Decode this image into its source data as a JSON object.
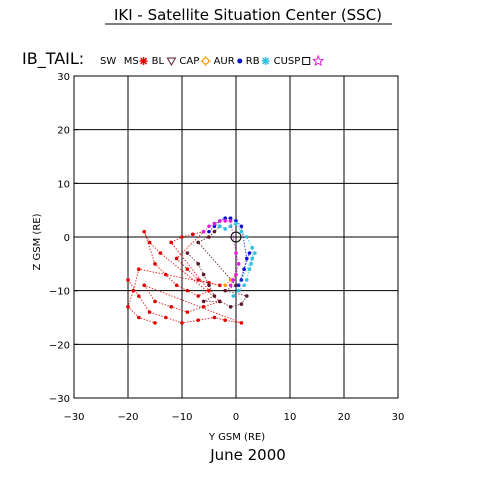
{
  "title": "IKI - Satellite Situation Center (SSC)",
  "satellite": "IB_TAIL:",
  "date_label": "June    2000",
  "legend": [
    {
      "label": "SW",
      "symbol": "none",
      "color": "#000000"
    },
    {
      "label": "MS",
      "symbol": "asterisk",
      "color": "#e00000"
    },
    {
      "label": "BL",
      "symbol": "triangle-down",
      "color": "#5a1a2a"
    },
    {
      "label": "CAP",
      "symbol": "sun",
      "color": "#ff9900"
    },
    {
      "label": "AUR",
      "symbol": "dot",
      "color": "#1010d0"
    },
    {
      "label": "RB",
      "symbol": "asterisk",
      "color": "#30c0e0"
    },
    {
      "label": "CUSP",
      "symbol": "square",
      "color": "#000000"
    },
    {
      "label": "",
      "symbol": "star",
      "color": "#e020e0"
    }
  ],
  "chart_data": {
    "type": "scatter",
    "xlabel": "Y GSM (RE)",
    "ylabel": "Z GSM (RE)",
    "xlim": [
      -30,
      30
    ],
    "ylim": [
      -30,
      30
    ],
    "xticks": [
      -30,
      -20,
      -10,
      0,
      10,
      20,
      30
    ],
    "yticks": [
      -30,
      -20,
      -10,
      0,
      10,
      20,
      30
    ],
    "grid": true,
    "origin_marker": [
      0,
      0
    ],
    "series": [
      {
        "name": "MS",
        "color": "#e00000",
        "points": [
          [
            -20,
            -8
          ],
          [
            -18,
            -11
          ],
          [
            -16,
            -14
          ],
          [
            -13,
            -15
          ],
          [
            -10,
            -16
          ],
          [
            -7,
            -15.5
          ],
          [
            -4,
            -15
          ],
          [
            -2,
            -15.5
          ],
          [
            1,
            -16
          ],
          [
            -17,
            -9
          ],
          [
            -15,
            -12
          ],
          [
            -12,
            -13
          ],
          [
            -9,
            -14
          ],
          [
            -6,
            -13
          ],
          [
            -3,
            -12
          ],
          [
            -14,
            -3
          ],
          [
            -16,
            -1
          ],
          [
            -17,
            1
          ],
          [
            -15,
            -5
          ],
          [
            -13,
            -7
          ],
          [
            -11,
            -9
          ],
          [
            -9,
            -10
          ],
          [
            -7,
            -11
          ],
          [
            -5,
            -10
          ],
          [
            -12,
            -1
          ],
          [
            -10,
            0
          ],
          [
            -8,
            0.5
          ],
          [
            -6,
            1
          ],
          [
            -11,
            -4
          ],
          [
            -9,
            -6
          ],
          [
            -7,
            -8
          ],
          [
            -5,
            -8.5
          ],
          [
            -3,
            -9
          ],
          [
            -18,
            -6
          ],
          [
            -19,
            -10
          ],
          [
            -20,
            -13
          ],
          [
            -18,
            -15
          ],
          [
            -15,
            -16
          ]
        ]
      },
      {
        "name": "BL",
        "color": "#5a1a2a",
        "points": [
          [
            -9,
            -3
          ],
          [
            -7,
            -5
          ],
          [
            -6,
            -7
          ],
          [
            -5,
            -9
          ],
          [
            -4,
            -11
          ],
          [
            -6,
            -12
          ],
          [
            -3,
            -12
          ],
          [
            -1,
            -13
          ],
          [
            1,
            -12.5
          ],
          [
            2,
            -11
          ],
          [
            -2,
            -10
          ],
          [
            0,
            -9
          ],
          [
            -7,
            -1
          ],
          [
            -5,
            0
          ],
          [
            -4,
            1
          ],
          [
            -3,
            2
          ]
        ]
      },
      {
        "name": "CAP",
        "color": "#ff9900",
        "points": [
          [
            -2,
            -9
          ],
          [
            -1,
            -8
          ],
          [
            0,
            -7
          ]
        ]
      },
      {
        "name": "AUR",
        "color": "#1010d0",
        "points": [
          [
            -5,
            1
          ],
          [
            -4,
            2
          ],
          [
            -3,
            3
          ],
          [
            -2,
            3.5
          ],
          [
            -1,
            3.5
          ],
          [
            0,
            3
          ],
          [
            1,
            2
          ],
          [
            2,
            -4
          ],
          [
            1.5,
            -6
          ],
          [
            1,
            -8
          ],
          [
            0.5,
            -9
          ],
          [
            2.5,
            -3
          ]
        ]
      },
      {
        "name": "RB",
        "color": "#30c0e0",
        "points": [
          [
            -4,
            2.5
          ],
          [
            -3,
            2
          ],
          [
            -2,
            1.5
          ],
          [
            -1,
            2
          ],
          [
            0,
            2.5
          ],
          [
            1,
            1
          ],
          [
            2,
            0
          ],
          [
            3,
            -2
          ],
          [
            3,
            -4
          ],
          [
            2.5,
            -6
          ],
          [
            2,
            -8
          ],
          [
            1.5,
            -9
          ],
          [
            0.5,
            -10
          ],
          [
            -0.5,
            -11
          ],
          [
            3.5,
            -3
          ],
          [
            2.8,
            -5
          ]
        ]
      },
      {
        "name": "CUSP",
        "color": "#e020e0",
        "points": [
          [
            -6,
            1
          ],
          [
            -5,
            2
          ],
          [
            -4,
            2.5
          ],
          [
            -3,
            3
          ],
          [
            -2,
            3
          ],
          [
            -1,
            3
          ],
          [
            0,
            -3
          ],
          [
            0.5,
            -5
          ],
          [
            0,
            -7
          ],
          [
            -0.5,
            -8
          ],
          [
            -1,
            -9
          ]
        ]
      }
    ]
  }
}
